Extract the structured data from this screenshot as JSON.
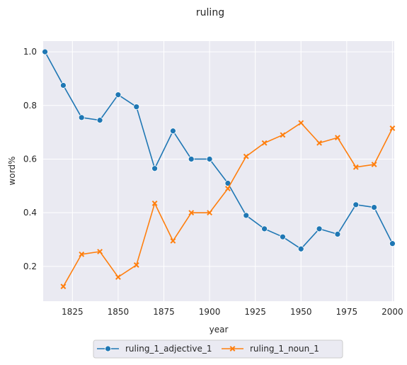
{
  "chart_data": {
    "type": "line",
    "title": "ruling",
    "xlabel": "year",
    "ylabel": "word%",
    "xlim": [
      1809,
      2001
    ],
    "ylim": [
      0.07,
      1.04
    ],
    "xticks": [
      1825,
      1850,
      1875,
      1900,
      1925,
      1950,
      1975,
      2000
    ],
    "yticks": [
      0.2,
      0.4,
      0.6,
      0.8,
      1.0
    ],
    "ytick_labels": [
      "0.2",
      "0.4",
      "0.6",
      "0.8",
      "1.0"
    ],
    "grid": true,
    "legend_position": "bottom-center",
    "series": [
      {
        "name": "ruling_1_adjective_1",
        "color": "#1f77b4",
        "marker": "circle",
        "x": [
          1810,
          1820,
          1830,
          1840,
          1850,
          1860,
          1870,
          1880,
          1890,
          1900,
          1910,
          1920,
          1930,
          1940,
          1950,
          1960,
          1970,
          1980,
          1990,
          2000
        ],
        "y": [
          1.0,
          0.875,
          0.755,
          0.745,
          0.84,
          0.795,
          0.565,
          0.705,
          0.6,
          0.6,
          0.51,
          0.39,
          0.34,
          0.31,
          0.265,
          0.34,
          0.32,
          0.43,
          0.42,
          0.285
        ]
      },
      {
        "name": "ruling_1_noun_1",
        "color": "#ff7f0e",
        "marker": "x",
        "x": [
          1820,
          1830,
          1840,
          1850,
          1860,
          1870,
          1880,
          1890,
          1900,
          1910,
          1920,
          1930,
          1940,
          1950,
          1960,
          1970,
          1980,
          1990,
          2000
        ],
        "y": [
          0.125,
          0.245,
          0.255,
          0.16,
          0.205,
          0.435,
          0.295,
          0.4,
          0.4,
          0.49,
          0.61,
          0.66,
          0.69,
          0.735,
          0.66,
          0.68,
          0.57,
          0.58,
          0.715
        ]
      }
    ]
  }
}
